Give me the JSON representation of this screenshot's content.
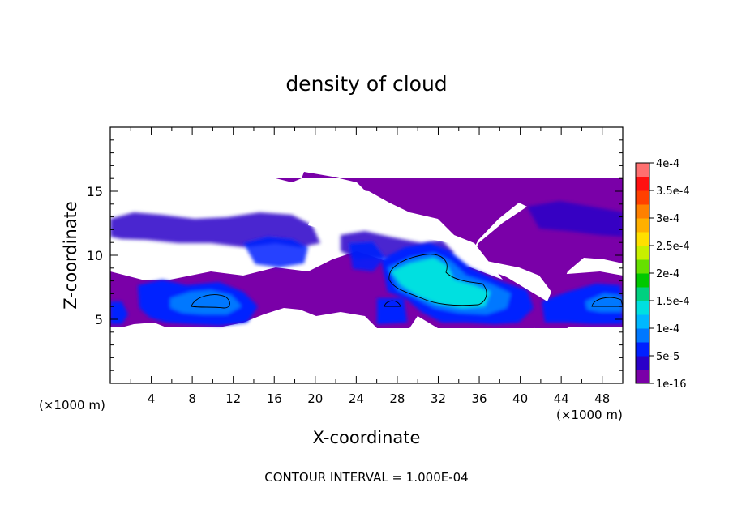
{
  "chart_data": {
    "type": "heatmap",
    "title": "density of cloud",
    "xlabel": "X-coordinate",
    "ylabel": "Z-coordinate",
    "x_unit_label": "(×1000 m)",
    "x_unit_label_right": "(×1000 m)",
    "footer": "CONTOUR INTERVAL = 1.000E-04",
    "xlim": [
      0,
      50
    ],
    "ylim": [
      0,
      20
    ],
    "x_ticks": [
      "4",
      "8",
      "12",
      "16",
      "20",
      "24",
      "28",
      "32",
      "36",
      "40",
      "44",
      "48"
    ],
    "y_ticks": [
      "5",
      "10",
      "15"
    ],
    "colorbar": {
      "range": [
        1e-16,
        0.0004
      ],
      "tick_labels": [
        "1e-16",
        "5e-5",
        "1e-4",
        "1.5e-4",
        "2e-4",
        "2.5e-4",
        "3e-4",
        "3.5e-4",
        "4e-4"
      ],
      "colors": [
        "#7a00a8",
        "#2a00c8",
        "#0020ff",
        "#0078ff",
        "#00b8ff",
        "#00e0e0",
        "#00d080",
        "#00c800",
        "#66e000",
        "#c8f000",
        "#ffe000",
        "#ffb000",
        "#ff8000",
        "#ff4000",
        "#ff1010",
        "#ff7070"
      ]
    },
    "regions": [
      {
        "name": "main-cloud-deck",
        "x": [
          0,
          50
        ],
        "z": [
          4.5,
          16
        ],
        "level": "1e-16 to 5e-5"
      },
      {
        "name": "upper-band",
        "x": [
          0,
          50
        ],
        "z": [
          11,
          14
        ],
        "level": "5e-5"
      },
      {
        "name": "core-left",
        "x": [
          7.5,
          12
        ],
        "z": [
          5.5,
          7
        ],
        "level": "1e-4"
      },
      {
        "name": "core-centre",
        "x": [
          27,
          37
        ],
        "z": [
          6,
          10
        ],
        "level": "1.5e-4"
      },
      {
        "name": "core-right",
        "x": [
          46,
          49
        ],
        "z": [
          5.8,
          6.8
        ],
        "level": "1e-4"
      }
    ],
    "grid": false,
    "legend": "right colorbar"
  }
}
